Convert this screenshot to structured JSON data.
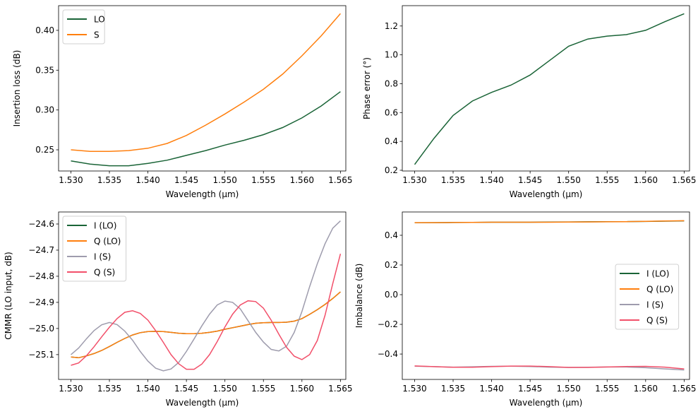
{
  "chart_data": [
    {
      "type": "line",
      "xlabel": "Wavelength (µm)",
      "ylabel": "Insertion loss (dB)",
      "xlim": [
        1.5284,
        1.5657
      ],
      "ylim": [
        0.2234,
        0.431
      ],
      "xticks": [
        1.53,
        1.535,
        1.54,
        1.545,
        1.55,
        1.555,
        1.56,
        1.565
      ],
      "xtick_labels": [
        "1.530",
        "1.535",
        "1.540",
        "1.545",
        "1.550",
        "1.555",
        "1.560",
        "1.565"
      ],
      "yticks": [
        0.25,
        0.3,
        0.35,
        0.4
      ],
      "ytick_labels": [
        "0.25",
        "0.30",
        "0.35",
        "0.40"
      ],
      "legend": "top-left",
      "grid": false,
      "x": [
        1.53,
        1.5325,
        1.535,
        1.5375,
        1.54,
        1.5425,
        1.545,
        1.5475,
        1.55,
        1.5525,
        1.555,
        1.5575,
        1.56,
        1.5625,
        1.565
      ],
      "series": [
        {
          "name": "LO",
          "color": "#1a6437",
          "values": [
            0.236,
            0.232,
            0.23,
            0.23,
            0.233,
            0.237,
            0.243,
            0.249,
            0.256,
            0.262,
            0.269,
            0.278,
            0.29,
            0.305,
            0.323
          ]
        },
        {
          "name": "S",
          "color": "#ff7f0e",
          "values": [
            0.25,
            0.248,
            0.248,
            0.249,
            0.252,
            0.258,
            0.268,
            0.281,
            0.295,
            0.31,
            0.326,
            0.345,
            0.368,
            0.393,
            0.421
          ]
        }
      ]
    },
    {
      "type": "line",
      "xlabel": "Wavelength (µm)",
      "ylabel": "Phase error (°)",
      "xlim": [
        1.5284,
        1.5657
      ],
      "ylim": [
        0.195,
        1.341
      ],
      "xticks": [
        1.53,
        1.535,
        1.54,
        1.545,
        1.55,
        1.555,
        1.56,
        1.565
      ],
      "xtick_labels": [
        "1.530",
        "1.535",
        "1.540",
        "1.545",
        "1.550",
        "1.555",
        "1.560",
        "1.565"
      ],
      "yticks": [
        0.2,
        0.4,
        0.6,
        0.8,
        1.0,
        1.2
      ],
      "ytick_labels": [
        "0.2",
        "0.4",
        "0.6",
        "0.8",
        "1.0",
        "1.2"
      ],
      "grid": false,
      "x": [
        1.53,
        1.5325,
        1.535,
        1.5375,
        1.54,
        1.5425,
        1.545,
        1.5475,
        1.55,
        1.5525,
        1.555,
        1.5575,
        1.56,
        1.5625,
        1.565
      ],
      "series": [
        {
          "color": "#1a6437",
          "values": [
            0.24,
            0.42,
            0.58,
            0.68,
            0.74,
            0.79,
            0.86,
            0.96,
            1.06,
            1.11,
            1.13,
            1.14,
            1.17,
            1.23,
            1.285
          ]
        }
      ]
    },
    {
      "type": "line",
      "xlabel": "Wavelength (µm)",
      "ylabel": "CMMR (LO input, dB)",
      "xlim": [
        1.5284,
        1.5657
      ],
      "ylim": [
        -25.195,
        -24.554
      ],
      "xticks": [
        1.53,
        1.535,
        1.54,
        1.545,
        1.55,
        1.555,
        1.56,
        1.565
      ],
      "xtick_labels": [
        "1.530",
        "1.535",
        "1.540",
        "1.545",
        "1.550",
        "1.555",
        "1.560",
        "1.565"
      ],
      "yticks": [
        -25.1,
        -25.0,
        -24.9,
        -24.8,
        -24.7,
        -24.6
      ],
      "ytick_labels": [
        "−25.1",
        "−25.0",
        "−24.9",
        "−24.8",
        "−24.7",
        "−24.6"
      ],
      "legend": "top-left",
      "grid": false,
      "x": [
        1.53,
        1.531,
        1.532,
        1.533,
        1.534,
        1.535,
        1.536,
        1.537,
        1.538,
        1.539,
        1.54,
        1.541,
        1.542,
        1.543,
        1.544,
        1.545,
        1.546,
        1.547,
        1.548,
        1.549,
        1.55,
        1.551,
        1.552,
        1.553,
        1.554,
        1.555,
        1.556,
        1.557,
        1.558,
        1.559,
        1.56,
        1.561,
        1.562,
        1.563,
        1.564,
        1.565
      ],
      "series": [
        {
          "name": "I (LO)",
          "color": "#1a6437",
          "values": [
            -25.109,
            -25.112,
            -25.105,
            -25.096,
            -25.084,
            -25.069,
            -25.053,
            -25.038,
            -25.025,
            -25.016,
            -25.012,
            -25.011,
            -25.012,
            -25.015,
            -25.018,
            -25.02,
            -25.02,
            -25.018,
            -25.015,
            -25.01,
            -25.003,
            -24.997,
            -24.991,
            -24.985,
            -24.98,
            -24.978,
            -24.977,
            -24.977,
            -24.976,
            -24.972,
            -24.962,
            -24.946,
            -24.928,
            -24.908,
            -24.885,
            -24.86
          ]
        },
        {
          "name": "Q (LO)",
          "color": "#ff7f0e",
          "values": [
            -25.109,
            -25.112,
            -25.105,
            -25.096,
            -25.084,
            -25.069,
            -25.053,
            -25.038,
            -25.025,
            -25.016,
            -25.012,
            -25.011,
            -25.012,
            -25.015,
            -25.018,
            -25.02,
            -25.02,
            -25.018,
            -25.015,
            -25.01,
            -25.003,
            -24.997,
            -24.991,
            -24.985,
            -24.98,
            -24.978,
            -24.977,
            -24.977,
            -24.976,
            -24.972,
            -24.962,
            -24.946,
            -24.928,
            -24.908,
            -24.885,
            -24.86
          ]
        },
        {
          "name": "I (S)",
          "color": "#9e9cad",
          "values": [
            -25.1,
            -25.075,
            -25.04,
            -25.008,
            -24.986,
            -24.977,
            -24.985,
            -25.01,
            -25.045,
            -25.088,
            -25.125,
            -25.152,
            -25.162,
            -25.155,
            -25.13,
            -25.088,
            -25.04,
            -24.99,
            -24.945,
            -24.91,
            -24.895,
            -24.9,
            -24.925,
            -24.97,
            -25.015,
            -25.052,
            -25.08,
            -25.086,
            -25.068,
            -25.015,
            -24.935,
            -24.84,
            -24.752,
            -24.676,
            -24.616,
            -24.588
          ]
        },
        {
          "name": "Q (S)",
          "color": "#f2506a",
          "values": [
            -25.141,
            -25.132,
            -25.105,
            -25.07,
            -25.032,
            -24.995,
            -24.962,
            -24.938,
            -24.932,
            -24.942,
            -24.968,
            -25.008,
            -25.053,
            -25.1,
            -25.135,
            -25.156,
            -25.156,
            -25.136,
            -25.1,
            -25.05,
            -24.994,
            -24.945,
            -24.91,
            -24.894,
            -24.897,
            -24.922,
            -24.968,
            -25.022,
            -25.072,
            -25.106,
            -25.119,
            -25.1,
            -25.046,
            -24.95,
            -24.828,
            -24.714
          ]
        }
      ]
    },
    {
      "type": "line",
      "xlabel": "Wavelength (µm)",
      "ylabel": "Imbalance (dB)",
      "xlim": [
        1.5284,
        1.5657
      ],
      "ylim": [
        -0.571,
        0.557
      ],
      "xticks": [
        1.53,
        1.535,
        1.54,
        1.545,
        1.55,
        1.555,
        1.56,
        1.565
      ],
      "xtick_labels": [
        "1.530",
        "1.535",
        "1.540",
        "1.545",
        "1.550",
        "1.555",
        "1.560",
        "1.565"
      ],
      "yticks": [
        -0.4,
        -0.2,
        0.0,
        0.2,
        0.4
      ],
      "ytick_labels": [
        "−0.4",
        "−0.2",
        "0.0",
        "0.2",
        "0.4"
      ],
      "legend": "center-right",
      "grid": false,
      "x": [
        1.53,
        1.5325,
        1.535,
        1.5375,
        1.54,
        1.5425,
        1.545,
        1.5475,
        1.55,
        1.5525,
        1.555,
        1.5575,
        1.56,
        1.5625,
        1.565
      ],
      "series": [
        {
          "name": "I (LO)",
          "color": "#1a6437",
          "values": [
            0.484,
            0.485,
            0.486,
            0.487,
            0.488,
            0.488,
            0.488,
            0.489,
            0.49,
            0.491,
            0.492,
            0.492,
            0.493,
            0.495,
            0.497
          ]
        },
        {
          "name": "Q (LO)",
          "color": "#ff7f0e",
          "values": [
            0.485,
            0.485,
            0.486,
            0.487,
            0.488,
            0.488,
            0.488,
            0.488,
            0.489,
            0.49,
            0.491,
            0.492,
            0.494,
            0.496,
            0.498
          ]
        },
        {
          "name": "I (S)",
          "color": "#9e9cad",
          "values": [
            -0.482,
            -0.485,
            -0.488,
            -0.486,
            -0.483,
            -0.482,
            -0.484,
            -0.488,
            -0.49,
            -0.489,
            -0.487,
            -0.487,
            -0.492,
            -0.5,
            -0.507
          ]
        },
        {
          "name": "Q (S)",
          "color": "#f2506a",
          "values": [
            -0.48,
            -0.485,
            -0.489,
            -0.489,
            -0.485,
            -0.481,
            -0.481,
            -0.485,
            -0.49,
            -0.49,
            -0.487,
            -0.484,
            -0.483,
            -0.488,
            -0.5
          ]
        }
      ]
    }
  ]
}
